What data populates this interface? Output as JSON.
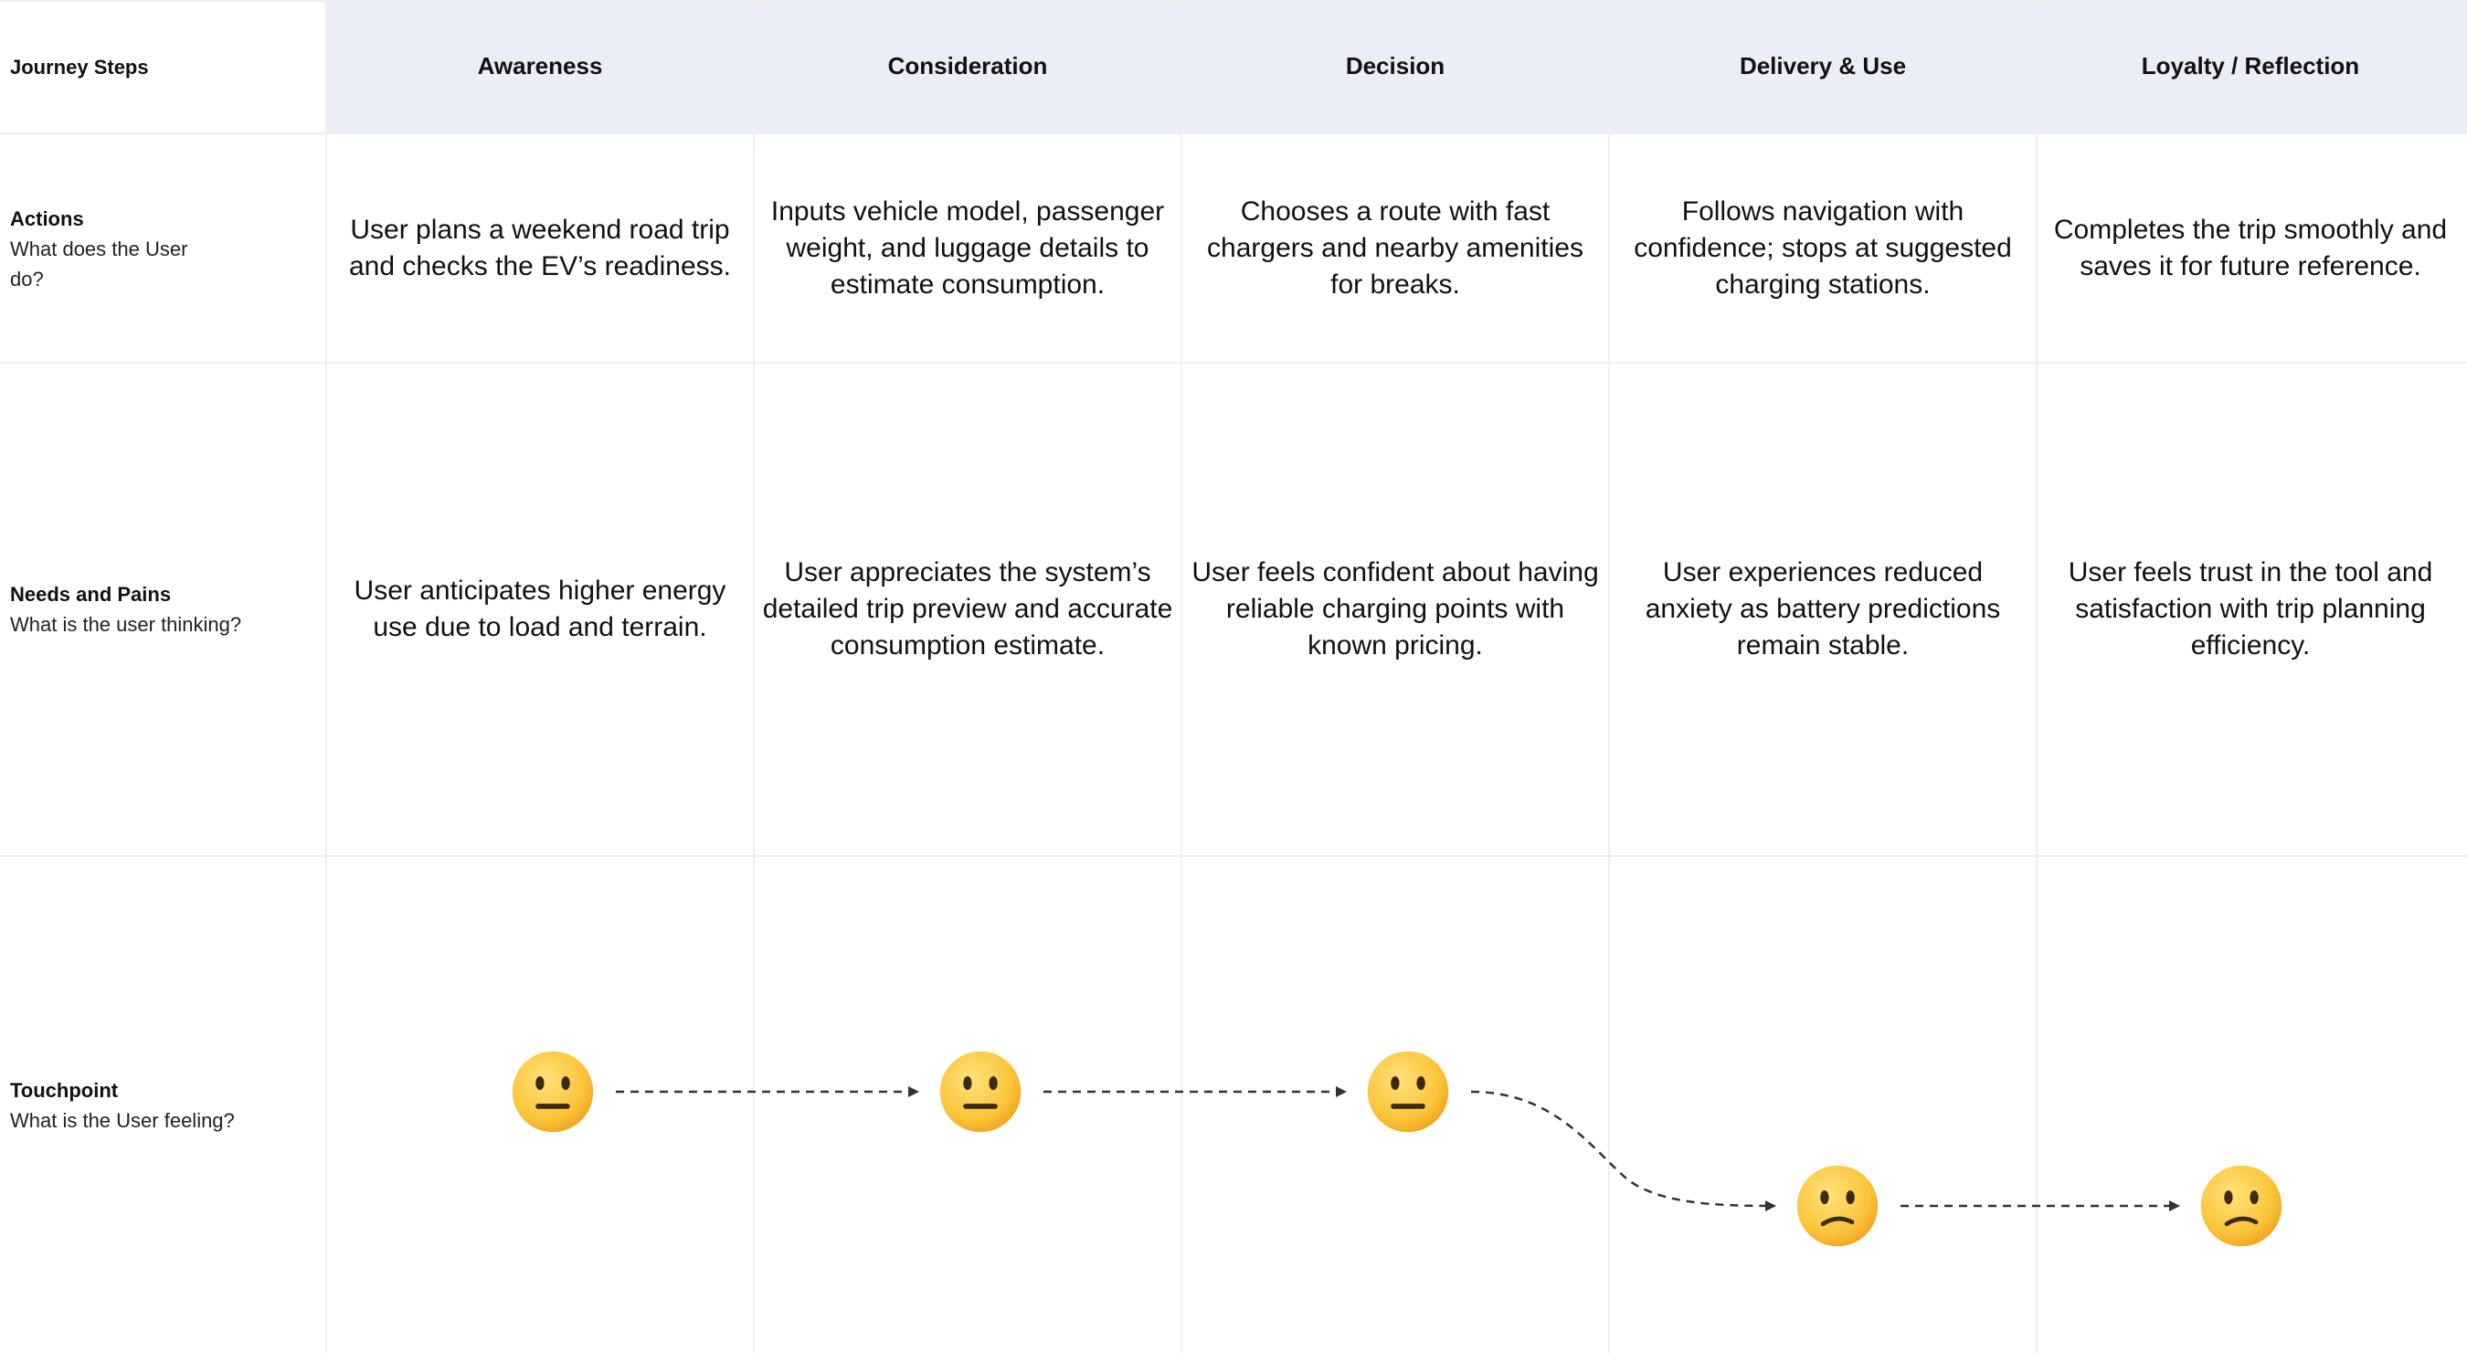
{
  "row_labels": {
    "journey": {
      "title": "Journey Steps",
      "sub": ""
    },
    "actions": {
      "title": "Actions",
      "sub": "What does the User do?"
    },
    "needs": {
      "title": "Needs and Pains",
      "sub": "What is the user thinking?"
    },
    "touchpoint": {
      "title": "Touchpoint",
      "sub": "What is the User feeling?"
    }
  },
  "stages": [
    {
      "name": "Awareness",
      "action": "User plans a weekend road trip and checks the EV’s readiness.",
      "need": "User anticipates higher energy use due to load and terrain.",
      "emotion": "neutral"
    },
    {
      "name": "Consideration",
      "action": "Inputs vehicle model, passenger weight, and luggage details to estimate consumption.",
      "need": "User appreciates the system’s detailed trip preview and accurate consumption estimate.",
      "emotion": "neutral"
    },
    {
      "name": "Decision",
      "action": "Chooses a route with fast chargers and nearby amenities for breaks.",
      "need": "User feels confident about having reliable charging points with known pricing.",
      "emotion": "neutral"
    },
    {
      "name": "Delivery & Use",
      "action": "Follows navigation with confidence; stops at suggested charging stations.",
      "need": "User experiences reduced anxiety as battery predictions remain stable.",
      "emotion": "confused"
    },
    {
      "name": "Loyalty / Reflection",
      "action": "Completes the trip smoothly and saves it for future reference.",
      "need": "User feels trust in the tool and satisfaction with trip planning efficiency.",
      "emotion": "confused"
    }
  ],
  "colors": {
    "header_band": "#ebedf8",
    "grid_line": "#efefef",
    "face_fill": "#fbc43a",
    "face_features": "#3b2a14",
    "arrow": "#333333"
  }
}
